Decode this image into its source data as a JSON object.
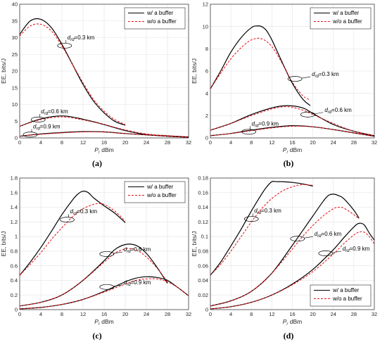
{
  "chart_data": [
    {
      "type": "line",
      "caption": "(a)",
      "xlabel": "P_r dBm",
      "ylabel": "EE, bits/J",
      "xlim": [
        0,
        32
      ],
      "ylim": [
        0,
        40
      ],
      "xticks": [
        "0",
        "4",
        "8",
        "12",
        "16",
        "20",
        "24",
        "28",
        "32"
      ],
      "yticks": [
        "0",
        "5",
        "10",
        "15",
        "20",
        "25",
        "30",
        "35",
        "40"
      ],
      "grid": true,
      "legend": {
        "position": "top-right",
        "entries": [
          "w/ a buffer",
          "w/o a buffer"
        ]
      },
      "annotations": [
        {
          "label": "d_rd=0.3 km",
          "x": 8.5,
          "y": 27.6
        },
        {
          "label": "d_rd=0.6 km",
          "x": 3.5,
          "y": 5.5
        },
        {
          "label": "d_rd=0.9 km",
          "x": 2.0,
          "y": 1.0
        }
      ],
      "series": [
        {
          "name": "w/ a buffer",
          "group": "d_rd=0.3 km",
          "style": "solid",
          "x": [
            0,
            2,
            4,
            6,
            8,
            10,
            12,
            14,
            16,
            18,
            20
          ],
          "y": [
            31,
            35,
            35.5,
            33,
            28,
            22,
            16,
            11,
            7.5,
            5,
            3.8
          ]
        },
        {
          "name": "w/o a buffer",
          "group": "d_rd=0.3 km",
          "style": "dashed",
          "x": [
            0,
            2,
            4,
            6,
            8,
            10,
            12,
            14,
            16,
            18,
            20
          ],
          "y": [
            30.5,
            33.5,
            34,
            32,
            27.5,
            22,
            16.5,
            11.5,
            8,
            5.5,
            4
          ]
        },
        {
          "name": "w/ a buffer",
          "group": "d_rd=0.6 km",
          "style": "solid",
          "x": [
            0,
            4,
            8,
            12,
            16,
            20,
            24,
            28,
            32
          ],
          "y": [
            3.5,
            5.7,
            6.6,
            5.6,
            4,
            2.2,
            1,
            0.6,
            0.3
          ]
        },
        {
          "name": "w/o a buffer",
          "group": "d_rd=0.6 km",
          "style": "dashed",
          "x": [
            0,
            4,
            8,
            12,
            16,
            20,
            24,
            28,
            32
          ],
          "y": [
            3.5,
            5.5,
            6.3,
            5.4,
            4,
            2.4,
            1.2,
            0.7,
            0.3
          ]
        },
        {
          "name": "w/ a buffer",
          "group": "d_rd=0.9 km",
          "style": "solid",
          "x": [
            0,
            4,
            8,
            12,
            16,
            20,
            24,
            28,
            32
          ],
          "y": [
            0.5,
            1.2,
            1.6,
            1.9,
            1.8,
            1.3,
            0.9,
            0.5,
            0.2
          ]
        },
        {
          "name": "w/o a buffer",
          "group": "d_rd=0.9 km",
          "style": "dashed",
          "x": [
            0,
            4,
            8,
            12,
            16,
            20,
            24,
            28,
            32
          ],
          "y": [
            0.5,
            1.1,
            1.5,
            1.8,
            1.75,
            1.3,
            0.9,
            0.5,
            0.2
          ]
        }
      ]
    },
    {
      "type": "line",
      "caption": "(b)",
      "xlabel": "P_r dBm",
      "ylabel": "EE, bits/J",
      "xlim": [
        0,
        32
      ],
      "ylim": [
        0,
        12
      ],
      "xticks": [
        "0",
        "4",
        "8",
        "12",
        "16",
        "20",
        "24",
        "28",
        "32"
      ],
      "yticks": [
        "0",
        "2",
        "4",
        "6",
        "8",
        "10",
        "12"
      ],
      "grid": true,
      "legend": {
        "position": "top-right",
        "entries": [
          "w/ a buffer",
          "w/o a buffer"
        ]
      },
      "annotations": [
        {
          "label": "d_rd=0.3 km",
          "x": 16.5,
          "y": 5.3
        },
        {
          "label": "d_rd=0.6 km",
          "x": 19.0,
          "y": 2.1
        },
        {
          "label": "d_rd=0.9 km",
          "x": 7.5,
          "y": 0.55
        }
      ],
      "series": [
        {
          "name": "w/ a buffer",
          "group": "d_rd=0.3 km",
          "style": "solid",
          "x": [
            0,
            2,
            4,
            6,
            8,
            9,
            10,
            11,
            12,
            14,
            16,
            18,
            19.5
          ],
          "y": [
            4.4,
            6,
            7.7,
            9,
            9.9,
            10.05,
            10,
            9.6,
            8.8,
            6.8,
            4.9,
            3.5,
            2.9
          ]
        },
        {
          "name": "w/o a buffer",
          "group": "d_rd=0.3 km",
          "style": "dashed",
          "x": [
            0,
            2,
            4,
            6,
            8,
            10,
            12,
            14,
            16,
            18,
            19.5
          ],
          "y": [
            4.4,
            5.8,
            7.1,
            8.1,
            8.8,
            8.9,
            8.2,
            6.7,
            5,
            3.8,
            3.4
          ]
        },
        {
          "name": "w/ a buffer",
          "group": "d_rd=0.6 km",
          "style": "solid",
          "x": [
            0,
            4,
            8,
            12,
            15,
            18,
            20,
            24,
            28,
            32
          ],
          "y": [
            0.7,
            1.3,
            2.1,
            2.7,
            2.9,
            2.7,
            2.2,
            1.2,
            0.6,
            0.2
          ]
        },
        {
          "name": "w/o a buffer",
          "group": "d_rd=0.6 km",
          "style": "dashed",
          "x": [
            0,
            4,
            8,
            12,
            15,
            18,
            20,
            24,
            28,
            32
          ],
          "y": [
            0.7,
            1.3,
            2.0,
            2.6,
            2.8,
            2.5,
            2.1,
            1.3,
            0.6,
            0.2
          ]
        },
        {
          "name": "w/ a buffer",
          "group": "d_rd=0.9 km",
          "style": "solid",
          "x": [
            0,
            4,
            8,
            12,
            16,
            20,
            24,
            28,
            32
          ],
          "y": [
            0.2,
            0.4,
            0.7,
            0.95,
            1.1,
            1.0,
            0.75,
            0.45,
            0.15
          ]
        },
        {
          "name": "w/o a buffer",
          "group": "d_rd=0.9 km",
          "style": "dashed",
          "x": [
            0,
            4,
            8,
            12,
            16,
            20,
            24,
            28,
            32
          ],
          "y": [
            0.2,
            0.4,
            0.65,
            0.9,
            1.05,
            1.0,
            0.75,
            0.45,
            0.15
          ]
        }
      ]
    },
    {
      "type": "line",
      "caption": "(c)",
      "xlabel": "P_r dBm",
      "ylabel": "EE, bits/J",
      "xlim": [
        0,
        32
      ],
      "ylim": [
        0,
        1.8
      ],
      "xticks": [
        "0",
        "4",
        "8",
        "12",
        "16",
        "20",
        "24",
        "28",
        "32"
      ],
      "yticks": [
        "0",
        "0.2",
        "0.4",
        "0.6",
        "0.8",
        "1",
        "1.2",
        "1.4",
        "1.6",
        "1.8"
      ],
      "grid": true,
      "legend": {
        "position": "top-right",
        "entries": [
          "w/ a buffer",
          "w/o a buffer"
        ]
      },
      "annotations": [
        {
          "label": "d_rd=0.3 km",
          "x": 9.0,
          "y": 1.23
        },
        {
          "label": "d_rd=0.6 km",
          "x": 16.5,
          "y": 0.76
        },
        {
          "label": "d_rd=0.9 km",
          "x": 16.5,
          "y": 0.31
        }
      ],
      "series": [
        {
          "name": "w/ a buffer",
          "group": "d_rd=0.3 km",
          "style": "solid",
          "x": [
            0,
            2,
            4,
            6,
            8,
            10,
            11,
            12,
            13,
            14,
            16,
            18,
            20
          ],
          "y": [
            0.47,
            0.65,
            0.85,
            1.07,
            1.3,
            1.5,
            1.58,
            1.62,
            1.6,
            1.53,
            1.42,
            1.32,
            1.19
          ]
        },
        {
          "name": "w/o a buffer",
          "group": "d_rd=0.3 km",
          "style": "dashed",
          "x": [
            0,
            2,
            4,
            6,
            8,
            10,
            12,
            14,
            15,
            16,
            18,
            20
          ],
          "y": [
            0.47,
            0.62,
            0.78,
            0.96,
            1.12,
            1.27,
            1.38,
            1.44,
            1.45,
            1.44,
            1.35,
            1.21
          ]
        },
        {
          "name": "w/ a buffer",
          "group": "d_rd=0.6 km",
          "style": "solid",
          "x": [
            0,
            4,
            8,
            12,
            16,
            18,
            20,
            22,
            24,
            26,
            28
          ],
          "y": [
            0.05,
            0.1,
            0.2,
            0.4,
            0.67,
            0.82,
            0.89,
            0.88,
            0.77,
            0.58,
            0.36
          ]
        },
        {
          "name": "w/o a buffer",
          "group": "d_rd=0.6 km",
          "style": "dashed",
          "x": [
            0,
            4,
            8,
            12,
            16,
            18,
            20,
            22,
            24,
            26,
            28
          ],
          "y": [
            0.05,
            0.1,
            0.2,
            0.4,
            0.65,
            0.77,
            0.83,
            0.82,
            0.72,
            0.57,
            0.38
          ]
        },
        {
          "name": "w/ a buffer",
          "group": "d_rd=0.9 km",
          "style": "solid",
          "x": [
            0,
            4,
            8,
            12,
            16,
            20,
            22,
            24,
            26,
            28,
            30,
            32
          ],
          "y": [
            0.01,
            0.03,
            0.07,
            0.14,
            0.25,
            0.38,
            0.43,
            0.45,
            0.44,
            0.4,
            0.3,
            0.19
          ]
        },
        {
          "name": "w/o a buffer",
          "group": "d_rd=0.9 km",
          "style": "dashed",
          "x": [
            0,
            4,
            8,
            12,
            16,
            20,
            22,
            24,
            26,
            28,
            30,
            32
          ],
          "y": [
            0.01,
            0.03,
            0.07,
            0.14,
            0.24,
            0.35,
            0.4,
            0.42,
            0.42,
            0.38,
            0.3,
            0.19
          ]
        }
      ]
    },
    {
      "type": "line",
      "caption": "(d)",
      "xlabel": "P_r dBm",
      "ylabel": "EE, bits/J",
      "xlim": [
        0,
        32
      ],
      "ylim": [
        0,
        0.18
      ],
      "xticks": [
        "0",
        "4",
        "8",
        "12",
        "16",
        "20",
        "24",
        "28",
        "32"
      ],
      "yticks": [
        "0",
        "0.02",
        "0.04",
        "0.06",
        "0.08",
        "0.1",
        "0.12",
        "0.14",
        "0.16",
        "0.18"
      ],
      "grid": true,
      "legend": {
        "position": "bottom-right",
        "entries": [
          "w/ a buffer",
          "w/o a buffer"
        ]
      },
      "annotations": [
        {
          "label": "d_rd=0.3 km",
          "x": 8.0,
          "y": 0.124
        },
        {
          "label": "d_rd=0.6 km",
          "x": 17.0,
          "y": 0.097
        },
        {
          "label": "d_rd=0.9 km",
          "x": 22.5,
          "y": 0.077
        }
      ],
      "series": [
        {
          "name": "w/ a buffer",
          "group": "d_rd=0.3 km",
          "style": "solid",
          "x": [
            0,
            2,
            4,
            6,
            8,
            10,
            11,
            12,
            13,
            14,
            16,
            18,
            20
          ],
          "y": [
            0.047,
            0.065,
            0.087,
            0.11,
            0.135,
            0.158,
            0.168,
            0.175,
            0.175,
            0.175,
            0.174,
            0.172,
            0.169
          ]
        },
        {
          "name": "w/o a buffer",
          "group": "d_rd=0.3 km",
          "style": "dashed",
          "x": [
            0,
            2,
            4,
            6,
            8,
            10,
            12,
            14,
            16,
            18,
            20
          ],
          "y": [
            0.047,
            0.062,
            0.08,
            0.1,
            0.12,
            0.138,
            0.152,
            0.162,
            0.168,
            0.171,
            0.17
          ]
        },
        {
          "name": "w/ a buffer",
          "group": "d_rd=0.6 km",
          "style": "solid",
          "x": [
            0,
            4,
            8,
            12,
            16,
            18,
            20,
            22,
            23,
            24,
            25,
            26,
            28,
            29
          ],
          "y": [
            0.005,
            0.012,
            0.025,
            0.05,
            0.088,
            0.108,
            0.128,
            0.148,
            0.156,
            0.158,
            0.156,
            0.152,
            0.136,
            0.125
          ]
        },
        {
          "name": "w/o a buffer",
          "group": "d_rd=0.6 km",
          "style": "dashed",
          "x": [
            0,
            4,
            8,
            12,
            16,
            18,
            20,
            22,
            24,
            25,
            26,
            28,
            29
          ],
          "y": [
            0.005,
            0.012,
            0.025,
            0.05,
            0.083,
            0.1,
            0.115,
            0.128,
            0.138,
            0.14,
            0.139,
            0.13,
            0.124
          ]
        },
        {
          "name": "w/ a buffer",
          "group": "d_rd=0.9 km",
          "style": "solid",
          "x": [
            0,
            4,
            8,
            12,
            16,
            20,
            24,
            26,
            28,
            29,
            30,
            31,
            32
          ],
          "y": [
            0.001,
            0.004,
            0.01,
            0.02,
            0.035,
            0.055,
            0.082,
            0.098,
            0.113,
            0.118,
            0.116,
            0.105,
            0.095
          ]
        },
        {
          "name": "w/o a buffer",
          "group": "d_rd=0.9 km",
          "style": "dashed",
          "x": [
            0,
            4,
            8,
            12,
            16,
            20,
            24,
            26,
            28,
            29,
            30,
            31,
            32
          ],
          "y": [
            0.001,
            0.004,
            0.01,
            0.02,
            0.034,
            0.052,
            0.076,
            0.09,
            0.102,
            0.106,
            0.106,
            0.1,
            0.09
          ]
        }
      ]
    }
  ]
}
